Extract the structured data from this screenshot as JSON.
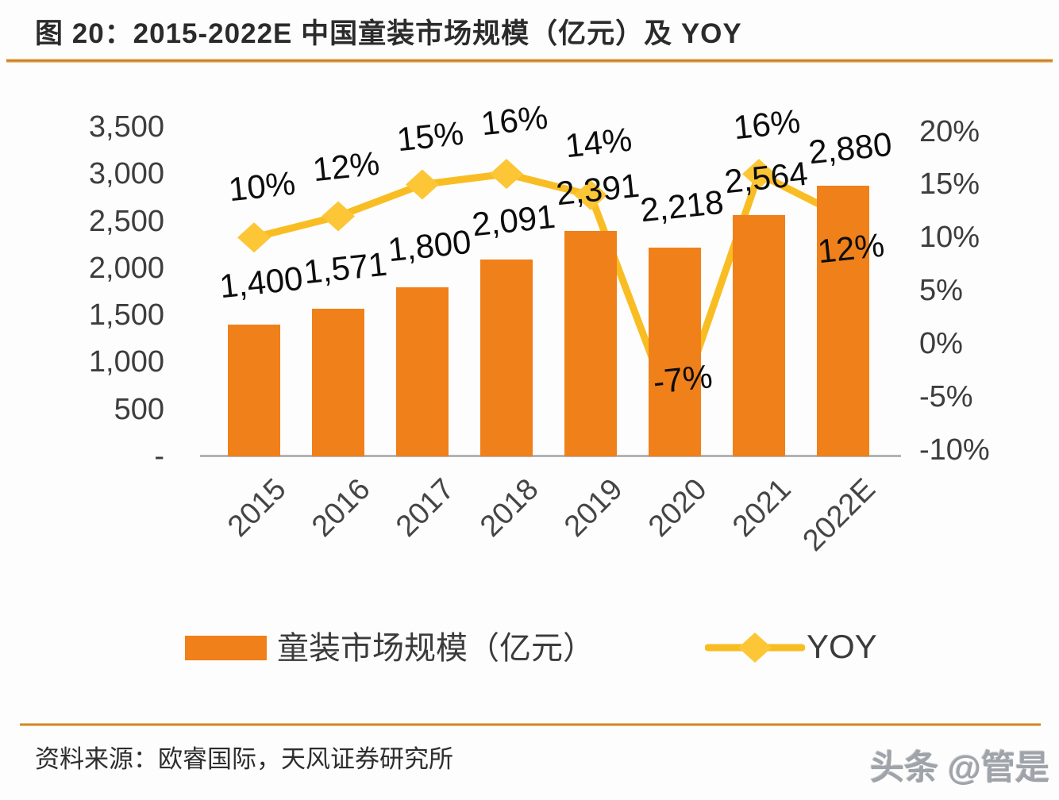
{
  "title": "图 20：2015-2022E 中国童装市场规模（亿元）及 YOY",
  "source": "资料来源：欧睿国际，天风证券研究所",
  "watermark": "头条 @管是",
  "legend": {
    "bar_label": "童装市场规模（亿元）",
    "line_label": "YOY"
  },
  "colors": {
    "bar": "#F0801A",
    "line": "#F9BD24",
    "marker": "#FCC637",
    "title_text": "#2B2B2B",
    "axis_text": "#3D3D3D",
    "label_text": "#0D0D0D",
    "baseline": "#B3B3B3"
  },
  "chart_data": {
    "type": "bar",
    "subtype": "bar+line combo, dual axis",
    "categories": [
      "2015",
      "2016",
      "2017",
      "2018",
      "2019",
      "2020",
      "2021",
      "2022E"
    ],
    "series": [
      {
        "name": "童装市场规模（亿元）",
        "type": "bar",
        "axis": "left",
        "values": [
          1400,
          1571,
          1800,
          2091,
          2391,
          2218,
          2564,
          2880
        ],
        "labels": [
          "1,400",
          "1,571",
          "1,800",
          "2,091",
          "2,391",
          "2,218",
          "2,564",
          "2,880"
        ]
      },
      {
        "name": "YOY",
        "type": "line",
        "axis": "right",
        "values_pct": [
          10,
          12,
          15,
          16,
          14,
          -7,
          16,
          12
        ],
        "labels": [
          "10%",
          "12%",
          "15%",
          "16%",
          "14%",
          "-7%",
          "16%",
          "12%"
        ]
      }
    ],
    "left_axis": {
      "min": 0,
      "max": 3500,
      "step": 500,
      "tick_labels": [
        "3,500",
        "3,000",
        "2,500",
        "2,000",
        "1,500",
        "1,000",
        "500",
        "-"
      ]
    },
    "right_axis": {
      "min_pct": -10,
      "max_pct": 20,
      "step_pct": 5,
      "tick_labels": [
        "20%",
        "15%",
        "10%",
        "5%",
        "0%",
        "-5%",
        "-10%"
      ]
    },
    "grid": false,
    "legend_position": "bottom",
    "data_label_rotation_deg": -6,
    "x_label_rotation_deg": -45,
    "bar_label_dy": [
      -53,
      -51,
      -52,
      -49,
      -52,
      -52,
      -47,
      -47
    ],
    "yoy_label_dy": [
      -64,
      -63,
      -60,
      -67,
      -66,
      -49,
      -62,
      40
    ]
  }
}
